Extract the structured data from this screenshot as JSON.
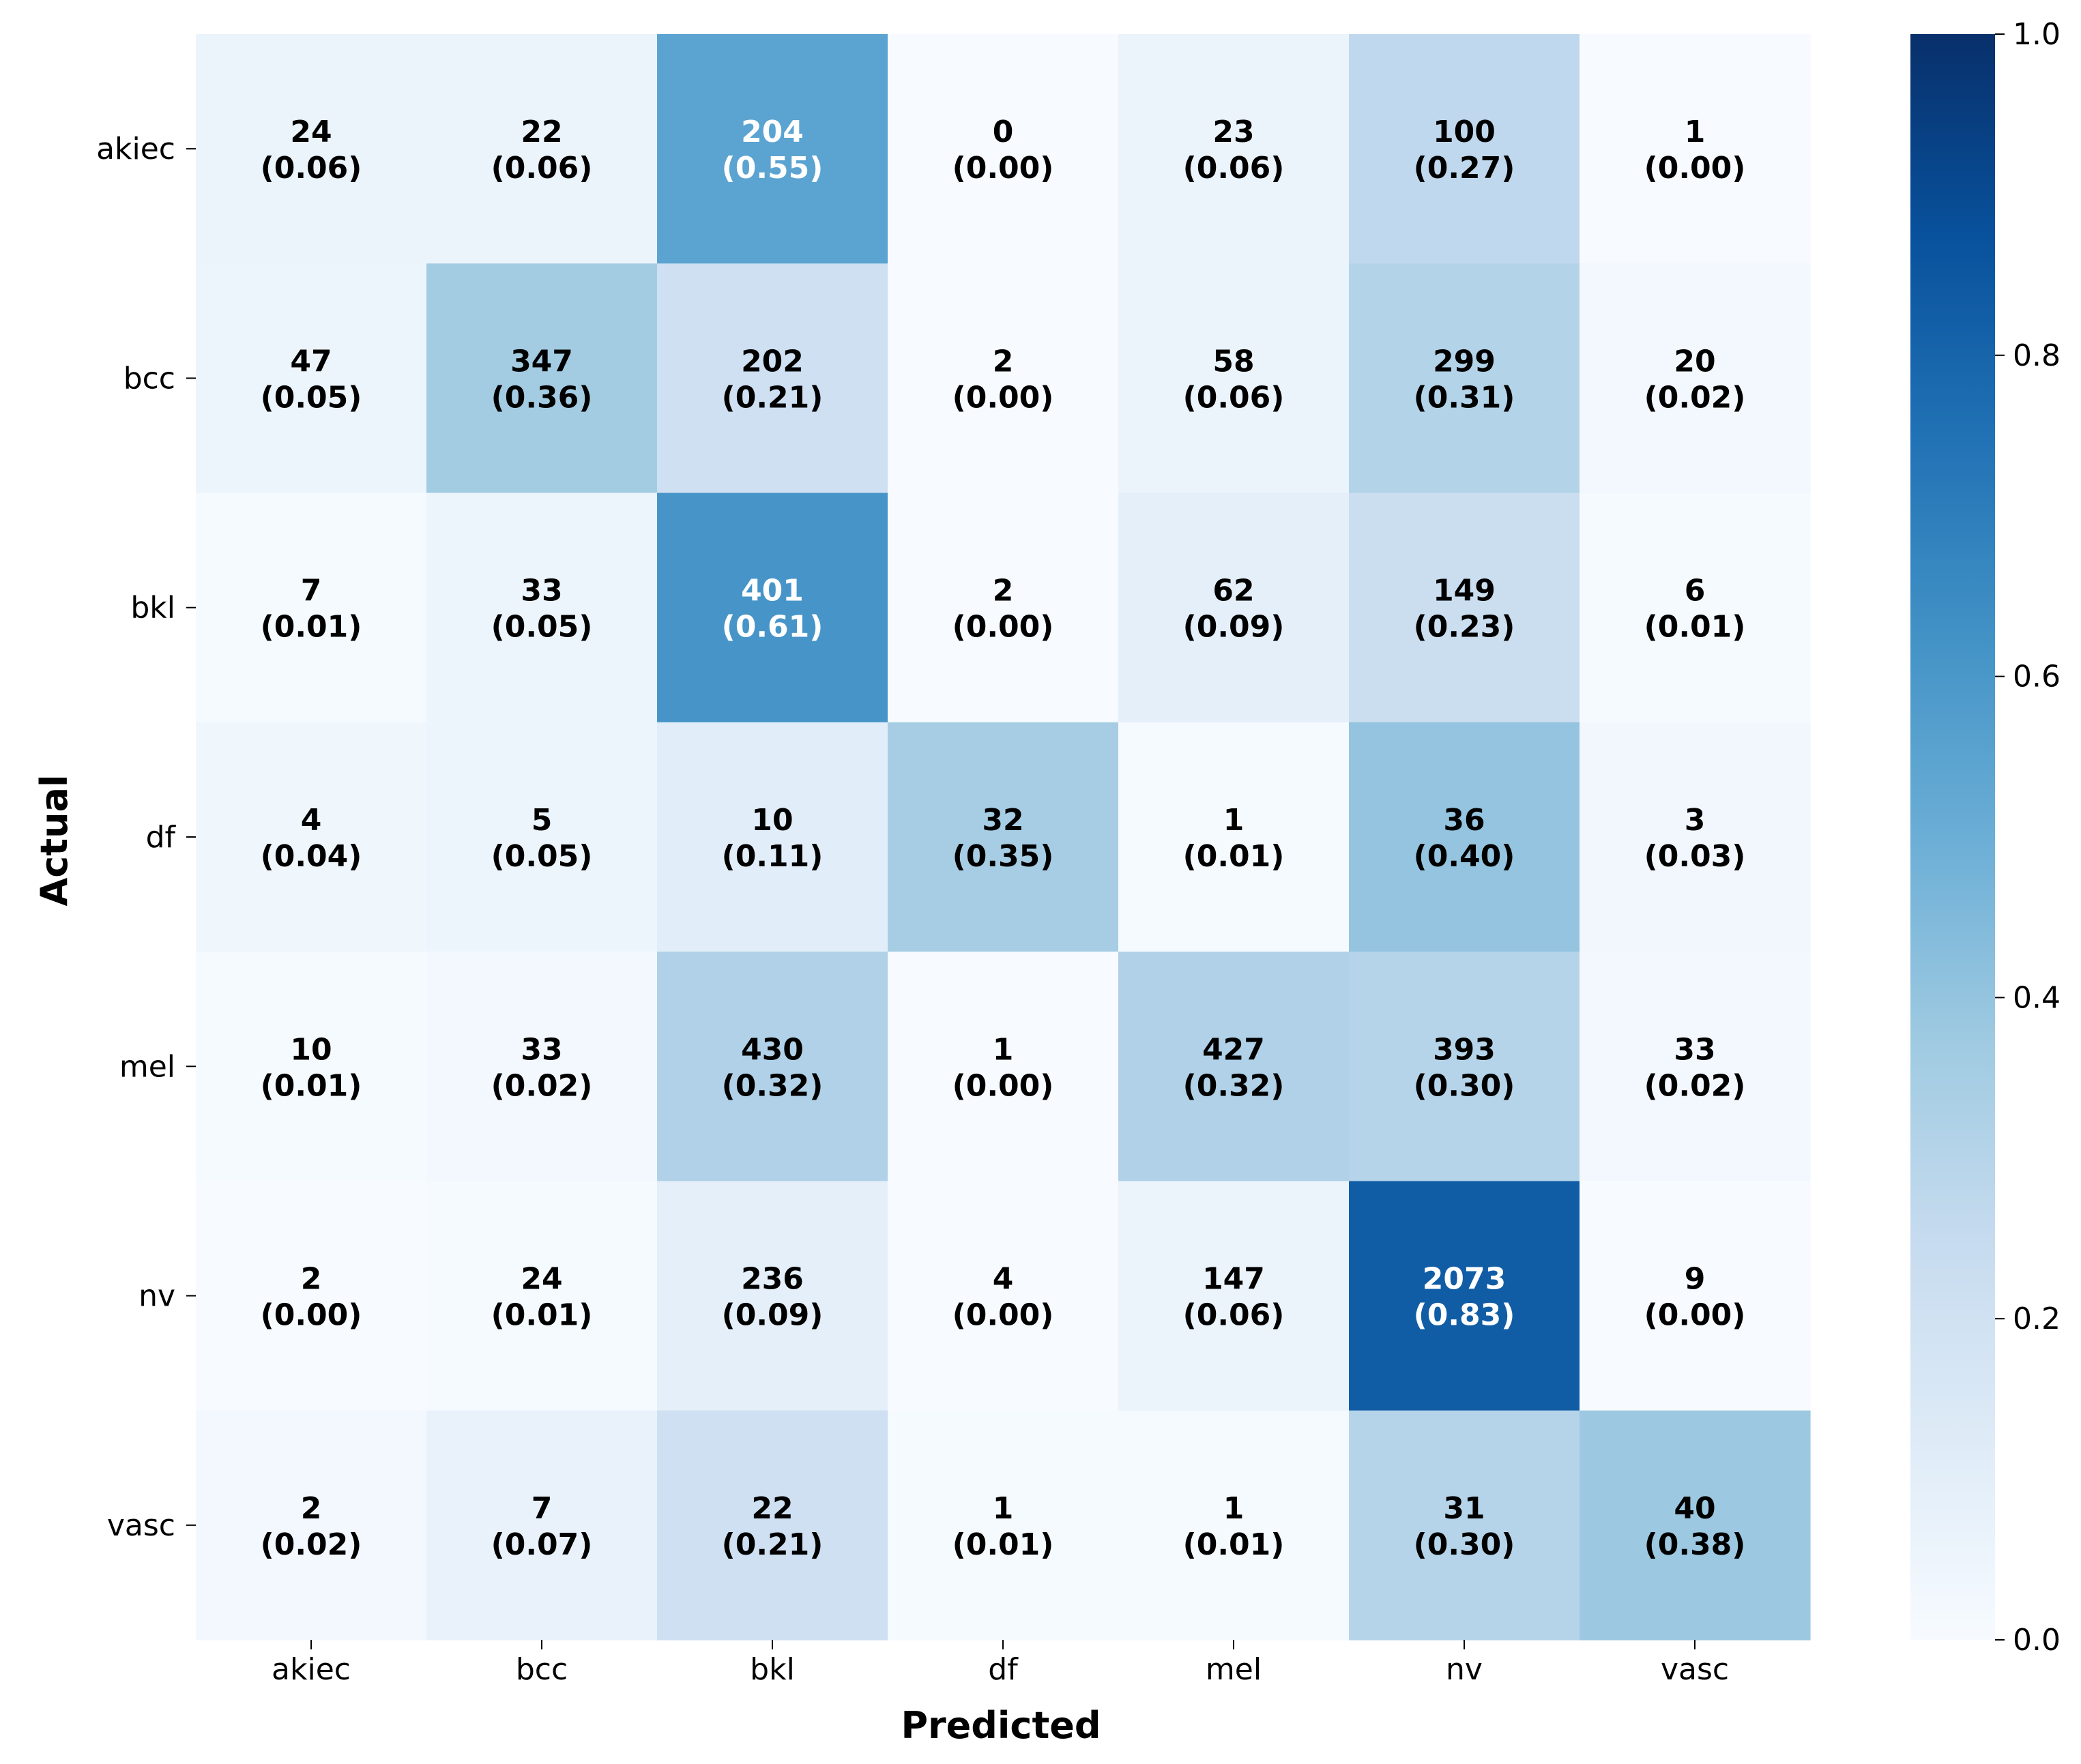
{
  "chart_data": {
    "type": "heatmap",
    "title": "",
    "xlabel": "Predicted",
    "ylabel": "Actual",
    "x_categories": [
      "akiec",
      "bcc",
      "bkl",
      "df",
      "mel",
      "nv",
      "vasc"
    ],
    "y_categories": [
      "akiec",
      "bcc",
      "bkl",
      "df",
      "mel",
      "nv",
      "vasc"
    ],
    "counts": [
      [
        24,
        22,
        204,
        0,
        23,
        100,
        1
      ],
      [
        47,
        347,
        202,
        2,
        58,
        299,
        20
      ],
      [
        7,
        33,
        401,
        2,
        62,
        149,
        6
      ],
      [
        4,
        5,
        10,
        32,
        1,
        36,
        3
      ],
      [
        10,
        33,
        430,
        1,
        427,
        393,
        33
      ],
      [
        2,
        24,
        236,
        4,
        147,
        2073,
        9
      ],
      [
        2,
        7,
        22,
        1,
        1,
        31,
        40
      ]
    ],
    "proportions": [
      [
        "0.06",
        "0.06",
        "0.55",
        "0.00",
        "0.06",
        "0.27",
        "0.00"
      ],
      [
        "0.05",
        "0.36",
        "0.21",
        "0.00",
        "0.06",
        "0.31",
        "0.02"
      ],
      [
        "0.01",
        "0.05",
        "0.61",
        "0.00",
        "0.09",
        "0.23",
        "0.01"
      ],
      [
        "0.04",
        "0.05",
        "0.11",
        "0.35",
        "0.01",
        "0.40",
        "0.03"
      ],
      [
        "0.01",
        "0.02",
        "0.32",
        "0.00",
        "0.32",
        "0.30",
        "0.02"
      ],
      [
        "0.00",
        "0.01",
        "0.09",
        "0.00",
        "0.06",
        "0.83",
        "0.00"
      ],
      [
        "0.02",
        "0.07",
        "0.21",
        "0.01",
        "0.01",
        "0.30",
        "0.38"
      ]
    ],
    "colormap": "Blues",
    "colorbar": {
      "range": [
        0.0,
        1.0
      ],
      "ticks": [
        "0.0",
        "0.2",
        "0.4",
        "0.6",
        "0.8",
        "1.0"
      ]
    },
    "legend": "colorbar-right",
    "grid": false
  }
}
